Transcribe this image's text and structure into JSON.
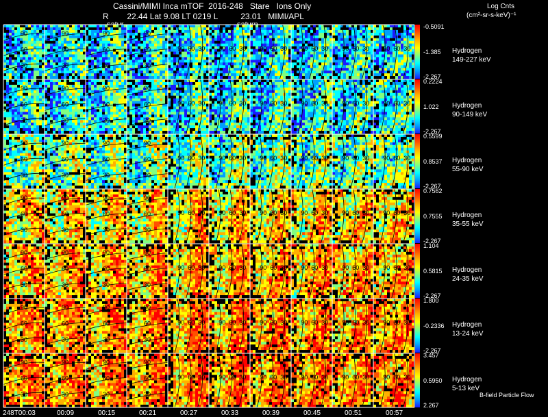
{
  "header": {
    "line1": "Cassini/MIMI Inca mTOF  2016-248   Stare   Ions Only",
    "line2": "R        22.44 Lat 9.08 LT 0219 L          23.01   MIMI/APL",
    "saturn_left": "satur",
    "saturn_right": "saturn",
    "units_line1": "Log Cnts",
    "units_line2": "(cm²-sr-s-keV)⁻¹"
  },
  "footer": {
    "bfield_label": "B-field Particle Flow"
  },
  "colors": {
    "background": "#000000",
    "grid": "#ffffff",
    "contour": "#000000",
    "colormap": [
      "#1a1aff",
      "#00a0ff",
      "#00ffff",
      "#80ff80",
      "#ffff00",
      "#ffb000",
      "#ff5000",
      "#ff0000"
    ]
  },
  "chart_data": {
    "type": "heatmap",
    "title": "Cassini/MIMI Inca mTOF  2016-248   Stare   Ions Only",
    "time_ticks": [
      "248T00:03",
      "00:09",
      "00:15",
      "00:21",
      "00:27",
      "00:33",
      "00:39",
      "00:45",
      "00:51",
      "00:57"
    ],
    "contour_labels": [
      "90",
      "60",
      "30"
    ],
    "channels": [
      {
        "species": "Hydrogen",
        "energy": "149-227 keV",
        "cb_max": "-0.5091",
        "cb_mid": "-1.385",
        "cb_min": "-2.267",
        "level": 0.28
      },
      {
        "species": "Hydrogen",
        "energy": "90-149 keV",
        "cb_max": "0.2224",
        "cb_mid": "1.022",
        "cb_min": "-2.267",
        "level": 0.32
      },
      {
        "species": "Hydrogen",
        "energy": "55-90 keV",
        "cb_max": "0.5599",
        "cb_mid": "0.8537",
        "cb_min": "-2.267",
        "level": 0.42
      },
      {
        "species": "Hydrogen",
        "energy": "35-55 keV",
        "cb_max": "0.7562",
        "cb_mid": "0.7555",
        "cb_min": "-2.267",
        "level": 0.62
      },
      {
        "species": "Hydrogen",
        "energy": "24-35 keV",
        "cb_max": "1.104",
        "cb_mid": "0.5815",
        "cb_min": "-2.267",
        "level": 0.68
      },
      {
        "species": "Hydrogen",
        "energy": "13-24 keV",
        "cb_max": "1.800",
        "cb_mid": "-0.2336",
        "cb_min": "-2.267",
        "level": 0.72
      },
      {
        "species": "Hydrogen",
        "energy": "5-13 keV",
        "cb_max": "3.457",
        "cb_mid": "0.5950",
        "cb_min": "2.267",
        "level": 0.74
      }
    ]
  }
}
